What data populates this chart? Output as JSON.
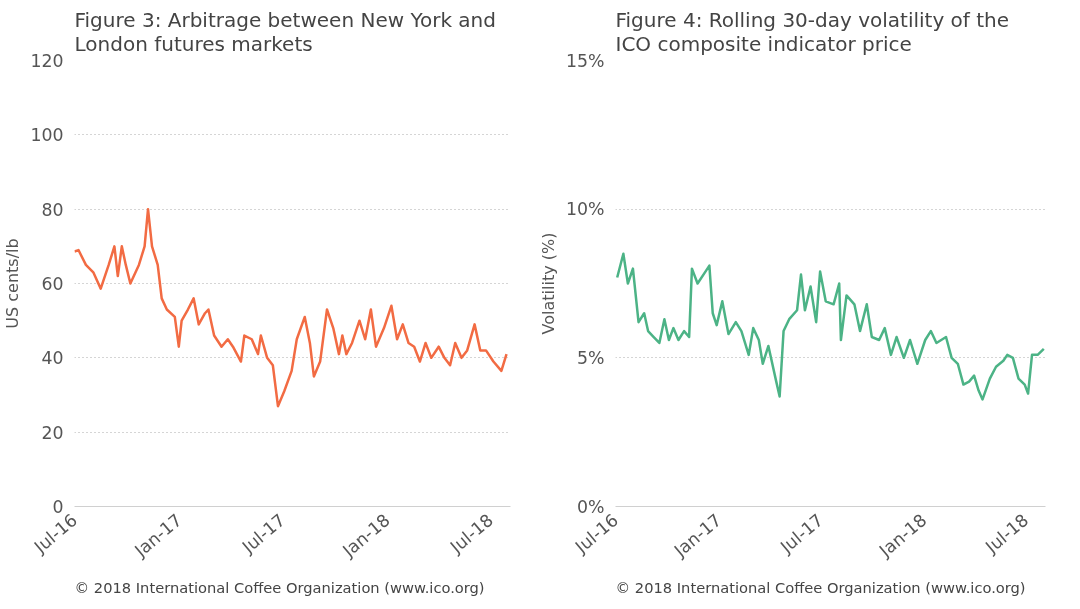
{
  "chart_data": [
    {
      "type": "line",
      "title": "Figure 3:  Arbitrage between New York and London futures markets",
      "ylabel": "US cents/lb",
      "annotations": [
        "© 2018 International Coffee Organization (www.ico.org)"
      ],
      "x": [
        "2016-07-01",
        "2016-07-08",
        "2016-07-21",
        "2016-08-03",
        "2016-08-16",
        "2016-08-30",
        "2016-09-09",
        "2016-09-15",
        "2016-09-22",
        "2016-09-29",
        "2016-10-07",
        "2016-10-22",
        "2016-11-01",
        "2016-11-07",
        "2016-11-14",
        "2016-11-24",
        "2016-12-01",
        "2016-12-10",
        "2016-12-24",
        "2016-12-31",
        "2017-01-05",
        "2017-01-16",
        "2017-01-26",
        "2017-02-04",
        "2017-02-15",
        "2017-02-21",
        "2017-03-03",
        "2017-03-16",
        "2017-03-27",
        "2017-04-05",
        "2017-04-19",
        "2017-04-25",
        "2017-05-08",
        "2017-05-19",
        "2017-05-24",
        "2017-06-04",
        "2017-06-14",
        "2017-06-23",
        "2017-07-04",
        "2017-07-17",
        "2017-07-26",
        "2017-08-09",
        "2017-08-18",
        "2017-08-25",
        "2017-09-05",
        "2017-09-17",
        "2017-09-28",
        "2017-10-08",
        "2017-10-14",
        "2017-10-21",
        "2017-10-31",
        "2017-11-13",
        "2017-11-23",
        "2017-12-03",
        "2017-12-12",
        "2017-12-26",
        "2018-01-08",
        "2018-01-18",
        "2018-01-28",
        "2018-02-07",
        "2018-02-17",
        "2018-02-27",
        "2018-03-09",
        "2018-03-19",
        "2018-04-01",
        "2018-04-11",
        "2018-04-21",
        "2018-04-30",
        "2018-05-11",
        "2018-05-21",
        "2018-06-03",
        "2018-06-13",
        "2018-06-23",
        "2018-07-06",
        "2018-07-20",
        "2018-07-29"
      ],
      "series": [
        {
          "color": "#f26b43",
          "values": [
            68.6,
            69,
            65,
            63,
            58.6,
            65,
            70,
            62,
            70,
            65,
            60,
            65,
            70,
            80,
            70,
            65,
            56,
            53,
            51,
            43,
            50,
            53,
            56,
            49,
            52,
            53,
            46,
            43,
            45,
            43,
            39,
            46,
            45,
            41,
            46,
            40,
            38,
            27,
            31,
            36.5,
            45,
            51,
            44,
            35,
            39,
            53,
            48,
            41,
            46,
            41,
            44,
            50,
            45,
            53,
            43,
            48,
            54,
            45,
            49,
            44,
            43,
            39,
            44,
            40,
            43,
            40,
            38,
            44,
            40,
            42,
            49,
            42,
            42,
            39,
            36.5,
            41
          ]
        }
      ],
      "xlim": [
        "2016-07-01",
        "2018-08-05"
      ],
      "xticks": [
        {
          "value": "2016-07-01",
          "label": "Jul-16"
        },
        {
          "value": "2017-01-01",
          "label": "Jan-17"
        },
        {
          "value": "2017-07-01",
          "label": "Jul-17"
        },
        {
          "value": "2018-01-01",
          "label": "Jan-18"
        },
        {
          "value": "2018-07-01",
          "label": "Jul-18"
        }
      ],
      "ylim": [
        0,
        120
      ],
      "yticks": [
        0,
        20,
        40,
        60,
        80,
        100,
        120
      ],
      "grid": "y"
    },
    {
      "type": "line",
      "title": "Figure 4:  Rolling 30-day volatility of the ICO composite indicator price",
      "ylabel": "Volatility (%)",
      "annotations": [
        "© 2018 International Coffee Organization (www.ico.org)"
      ],
      "x": [
        "2016-07-04",
        "2016-07-15",
        "2016-07-23",
        "2016-08-01",
        "2016-08-11",
        "2016-08-21",
        "2016-08-28",
        "2016-09-07",
        "2016-09-17",
        "2016-09-26",
        "2016-10-04",
        "2016-10-12",
        "2016-10-21",
        "2016-10-31",
        "2016-11-09",
        "2016-11-14",
        "2016-11-24",
        "2016-12-08",
        "2016-12-15",
        "2016-12-21",
        "2016-12-28",
        "2017-01-07",
        "2017-01-18",
        "2017-01-31",
        "2017-02-10",
        "2017-02-23",
        "2017-03-03",
        "2017-03-13",
        "2017-03-20",
        "2017-03-30",
        "2017-04-13",
        "2017-04-19",
        "2017-04-26",
        "2017-05-06",
        "2017-05-20",
        "2017-05-27",
        "2017-06-03",
        "2017-06-13",
        "2017-06-23",
        "2017-06-30",
        "2017-07-10",
        "2017-07-24",
        "2017-08-03",
        "2017-08-06",
        "2017-08-16",
        "2017-08-30",
        "2017-09-09",
        "2017-09-21",
        "2017-09-30",
        "2017-10-13",
        "2017-10-23",
        "2017-11-03",
        "2017-11-13",
        "2017-11-26",
        "2017-12-07",
        "2017-12-20",
        "2018-01-03",
        "2018-01-13",
        "2018-01-23",
        "2018-02-09",
        "2018-02-19",
        "2018-03-02",
        "2018-03-12",
        "2018-03-22",
        "2018-03-31",
        "2018-04-08",
        "2018-04-15",
        "2018-04-28",
        "2018-05-09",
        "2018-05-22",
        "2018-05-29",
        "2018-06-08",
        "2018-06-18",
        "2018-06-29",
        "2018-07-05",
        "2018-07-12",
        "2018-07-22",
        "2018-08-02"
      ],
      "series": [
        {
          "color": "#4cb386",
          "values": [
            7.7,
            8.5,
            7.5,
            8.0,
            6.2,
            6.5,
            5.9,
            5.7,
            5.5,
            6.3,
            5.6,
            6.0,
            5.6,
            5.9,
            5.7,
            8.0,
            7.5,
            7.9,
            8.1,
            6.5,
            6.1,
            6.9,
            5.8,
            6.2,
            5.9,
            5.1,
            6.0,
            5.6,
            4.8,
            5.4,
            4.2,
            3.7,
            5.9,
            6.3,
            6.6,
            7.8,
            6.6,
            7.4,
            6.2,
            7.9,
            6.9,
            6.8,
            7.5,
            5.6,
            7.1,
            6.8,
            5.9,
            6.8,
            5.7,
            5.6,
            6.0,
            5.1,
            5.7,
            5.0,
            5.6,
            4.8,
            5.6,
            5.9,
            5.5,
            5.7,
            5.0,
            4.8,
            4.1,
            4.2,
            4.4,
            3.9,
            3.6,
            4.3,
            4.7,
            4.9,
            5.1,
            5.0,
            4.3,
            4.1,
            3.8,
            5.1,
            5.1,
            5.3
          ]
        }
      ],
      "xlim": [
        "2016-07-01",
        "2018-08-05"
      ],
      "xticks": [
        {
          "value": "2016-07-01",
          "label": "Jul-16"
        },
        {
          "value": "2017-01-01",
          "label": "Jan-17"
        },
        {
          "value": "2017-07-01",
          "label": "Jul-17"
        },
        {
          "value": "2018-01-01",
          "label": "Jan-18"
        },
        {
          "value": "2018-07-01",
          "label": "Jul-18"
        }
      ],
      "ylim": [
        0,
        15
      ],
      "yticks": [
        {
          "value": 0,
          "label": "0%"
        },
        {
          "value": 5,
          "label": "5%"
        },
        {
          "value": 10,
          "label": "10%"
        },
        {
          "value": 15,
          "label": "15%"
        }
      ],
      "grid": "y"
    }
  ]
}
